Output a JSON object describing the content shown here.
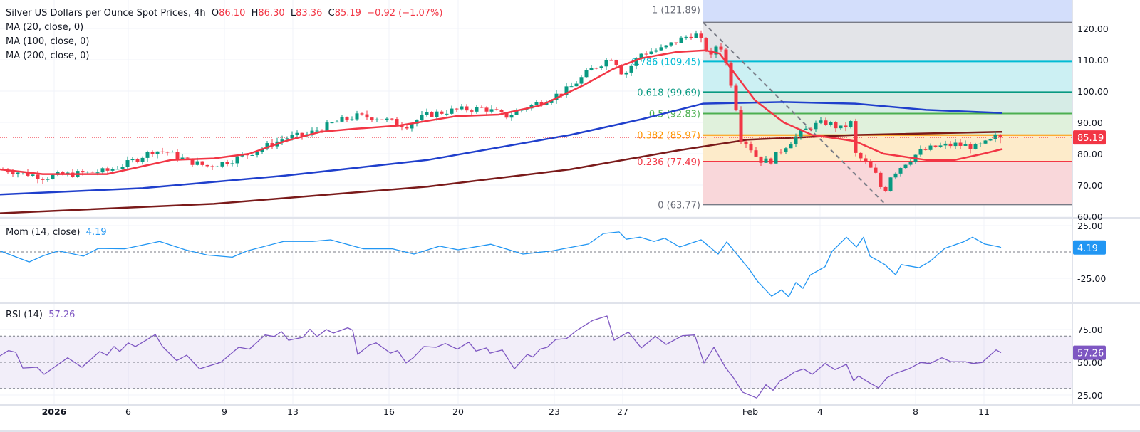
{
  "header": {
    "title": "Silver US Dollars per Ounce Spot Prices, 4h",
    "open_label": "O",
    "open": "86.10",
    "high_label": "H",
    "high": "86.30",
    "low_label": "L",
    "low": "83.36",
    "close_label": "C",
    "close": "85.19",
    "change": "−0.92 (−1.07%)",
    "ma1": "MA (20, close, 0)",
    "ma2": "MA (100, close, 0)",
    "ma3": "MA (200, close, 0)"
  },
  "colors": {
    "up": "#089981",
    "down": "#f23645",
    "ma20": "#f23645",
    "ma100": "#1f3fcc",
    "ma200": "#7a1a1a",
    "mom": "#2196f3",
    "rsi": "#7e57c2"
  },
  "chart_data": [
    {
      "type": "candlestick",
      "title": "Silver US Dollars per Ounce Spot Prices, 4h",
      "ylim": [
        58,
        127
      ],
      "y_ticks": [
        "120.00",
        "110.00",
        "100.00",
        "90.00",
        "80.00",
        "70.00",
        "60.00"
      ],
      "last_price": "85.19",
      "last_bar": {
        "open": 86.1,
        "high": 86.3,
        "low": 83.36,
        "close": 85.19
      },
      "x_ticks": [
        "2026",
        "6",
        "9",
        "13",
        "16",
        "20",
        "23",
        "27",
        "Feb",
        "4",
        "8",
        "11"
      ],
      "close_path": [
        [
          0,
          75
        ],
        [
          30,
          74
        ],
        [
          60,
          72.5
        ],
        [
          100,
          73.5
        ],
        [
          150,
          74.5
        ],
        [
          180,
          77
        ],
        [
          215,
          81
        ],
        [
          235,
          80.5
        ],
        [
          260,
          78
        ],
        [
          290,
          76
        ],
        [
          320,
          77.5
        ],
        [
          360,
          81
        ],
        [
          400,
          85
        ],
        [
          430,
          86
        ],
        [
          470,
          90
        ],
        [
          500,
          92
        ],
        [
          530,
          91.5
        ],
        [
          570,
          89
        ],
        [
          600,
          92.5
        ],
        [
          640,
          94
        ],
        [
          680,
          94.5
        ],
        [
          710,
          92
        ],
        [
          740,
          95
        ],
        [
          770,
          97.5
        ],
        [
          800,
          101
        ],
        [
          830,
          107
        ],
        [
          860,
          111
        ],
        [
          875,
          105
        ],
        [
          900,
          112
        ],
        [
          930,
          113.5
        ],
        [
          950,
          116
        ],
        [
          975,
          118.5
        ],
        [
          990,
          114
        ],
        [
          1000,
          110
        ],
        [
          1008,
          117
        ],
        [
          1020,
          108
        ],
        [
          1030,
          99
        ],
        [
          1040,
          85
        ],
        [
          1050,
          83
        ],
        [
          1065,
          78
        ],
        [
          1080,
          77.5
        ],
        [
          1100,
          82
        ],
        [
          1120,
          86
        ],
        [
          1140,
          89
        ],
        [
          1160,
          90
        ],
        [
          1180,
          88
        ],
        [
          1195,
          90
        ],
        [
          1200,
          80
        ],
        [
          1215,
          77
        ],
        [
          1230,
          73
        ],
        [
          1240,
          67
        ],
        [
          1250,
          73
        ],
        [
          1270,
          77
        ],
        [
          1290,
          80.5
        ],
        [
          1310,
          82
        ],
        [
          1340,
          83
        ],
        [
          1370,
          82
        ],
        [
          1390,
          84
        ],
        [
          1400,
          86
        ],
        [
          1407,
          85.19
        ]
      ],
      "ma20": [
        [
          0,
          75
        ],
        [
          60,
          73.5
        ],
        [
          150,
          73.5
        ],
        [
          200,
          76
        ],
        [
          240,
          78
        ],
        [
          300,
          78.5
        ],
        [
          350,
          80
        ],
        [
          400,
          84
        ],
        [
          450,
          87
        ],
        [
          500,
          88
        ],
        [
          560,
          89
        ],
        [
          640,
          92
        ],
        [
          700,
          92.5
        ],
        [
          760,
          95.5
        ],
        [
          820,
          102
        ],
        [
          860,
          107
        ],
        [
          900,
          110.5
        ],
        [
          950,
          112.5
        ],
        [
          990,
          113
        ],
        [
          1010,
          112
        ],
        [
          1030,
          106
        ],
        [
          1060,
          97
        ],
        [
          1100,
          90
        ],
        [
          1140,
          86
        ],
        [
          1200,
          84
        ],
        [
          1240,
          80
        ],
        [
          1300,
          78
        ],
        [
          1340,
          78
        ],
        [
          1380,
          80
        ],
        [
          1407,
          81.5
        ]
      ],
      "ma100": [
        [
          0,
          67
        ],
        [
          200,
          69
        ],
        [
          400,
          73
        ],
        [
          600,
          78
        ],
        [
          800,
          86
        ],
        [
          900,
          91
        ],
        [
          987,
          96
        ],
        [
          1100,
          96.5
        ],
        [
          1200,
          96
        ],
        [
          1300,
          94
        ],
        [
          1407,
          93
        ]
      ],
      "ma200": [
        [
          0,
          61
        ],
        [
          300,
          64
        ],
        [
          600,
          69.5
        ],
        [
          800,
          75
        ],
        [
          950,
          81
        ],
        [
          1050,
          84.5
        ],
        [
          1200,
          86
        ],
        [
          1407,
          87
        ]
      ],
      "fibonacci": [
        {
          "level": "1",
          "price": 121.89,
          "label": "1 (121.89)",
          "color": "#787b86",
          "fill": "#e3e4e8"
        },
        {
          "level": "0.786",
          "price": 109.45,
          "label": "0.786 (109.45)",
          "color": "#00bcd4",
          "fill": "#ccf0f3"
        },
        {
          "level": "0.618",
          "price": 99.69,
          "label": "0.618 (99.69)",
          "color": "#089981",
          "fill": "#d6ece6"
        },
        {
          "level": "0.5",
          "price": 92.83,
          "label": "0.5 (92.83)",
          "color": "#4caf50",
          "fill": "#e0f1dc"
        },
        {
          "level": "0.382",
          "price": 85.97,
          "label": "0.382 (85.97)",
          "color": "#ff9800",
          "fill": "#fdebca"
        },
        {
          "level": "0.236",
          "price": 77.49,
          "label": "0.236 (77.49)",
          "color": "#f23645",
          "fill": "#f9d7da"
        },
        {
          "level": "0",
          "price": 63.77,
          "label": "0 (63.77)",
          "color": "#787b86",
          "fill": "#f9d7da"
        }
      ]
    },
    {
      "type": "line",
      "title": "Mom (14, close)",
      "last_value": "4.19",
      "y_ticks": [
        "25.00",
        "-25.00"
      ],
      "values": [
        [
          0,
          1
        ],
        [
          41,
          -9.5
        ],
        [
          61,
          -3.5
        ],
        [
          82,
          1
        ],
        [
          117,
          -4
        ],
        [
          138,
          3.3
        ],
        [
          175,
          3
        ],
        [
          224,
          10
        ],
        [
          260,
          2
        ],
        [
          291,
          -3
        ],
        [
          326,
          -5
        ],
        [
          347,
          1
        ],
        [
          398,
          10
        ],
        [
          439,
          10
        ],
        [
          464,
          11.5
        ],
        [
          510,
          3
        ],
        [
          551,
          3
        ],
        [
          581,
          -2
        ],
        [
          617,
          5.5
        ],
        [
          643,
          2
        ],
        [
          689,
          7.3
        ],
        [
          734,
          -2
        ],
        [
          775,
          1
        ],
        [
          826,
          7.5
        ],
        [
          847,
          17.5
        ],
        [
          869,
          19
        ],
        [
          879,
          12
        ],
        [
          898,
          14
        ],
        [
          918,
          10
        ],
        [
          933,
          13
        ],
        [
          954,
          4.7
        ],
        [
          984,
          11.5
        ],
        [
          1008,
          -2
        ],
        [
          1020,
          9.5
        ],
        [
          1051,
          -16
        ],
        [
          1063,
          -27.7
        ],
        [
          1083,
          -42
        ],
        [
          1097,
          -36
        ],
        [
          1107,
          -42.6
        ],
        [
          1117,
          -29
        ],
        [
          1127,
          -34.5
        ],
        [
          1137,
          -22
        ],
        [
          1158,
          -14
        ],
        [
          1168,
          0.7
        ],
        [
          1188,
          14
        ],
        [
          1202,
          4.7
        ],
        [
          1212,
          14
        ],
        [
          1221,
          -4
        ],
        [
          1242,
          -12
        ],
        [
          1257,
          -21.6
        ],
        [
          1265,
          -12
        ],
        [
          1290,
          -15
        ],
        [
          1306,
          -8.6
        ],
        [
          1326,
          3.4
        ],
        [
          1352,
          9.5
        ],
        [
          1365,
          14
        ],
        [
          1382,
          7.5
        ],
        [
          1403,
          4.7
        ],
        [
          1405,
          4.19
        ]
      ]
    },
    {
      "type": "line",
      "title": "RSI (14)",
      "last_value": "57.26",
      "y_ticks": [
        "75.00",
        "50.00",
        "25.00"
      ],
      "bands": [
        70,
        50,
        30
      ],
      "values": [
        [
          0,
          54.9
        ],
        [
          12,
          58.9
        ],
        [
          22,
          57.6
        ],
        [
          32,
          45.6
        ],
        [
          52,
          46.2
        ],
        [
          62,
          40.8
        ],
        [
          95,
          53.4
        ],
        [
          115,
          46.2
        ],
        [
          140,
          58.2
        ],
        [
          150,
          55.4
        ],
        [
          160,
          62
        ],
        [
          168,
          58.2
        ],
        [
          180,
          64.8
        ],
        [
          190,
          62
        ],
        [
          205,
          66.8
        ],
        [
          218,
          71.2
        ],
        [
          228,
          62
        ],
        [
          248,
          51.3
        ],
        [
          262,
          55.4
        ],
        [
          280,
          45
        ],
        [
          310,
          50
        ],
        [
          335,
          61.4
        ],
        [
          350,
          60
        ],
        [
          372,
          70.8
        ],
        [
          385,
          69.7
        ],
        [
          395,
          73.4
        ],
        [
          405,
          66.8
        ],
        [
          425,
          69
        ],
        [
          435,
          75.2
        ],
        [
          445,
          69.5
        ],
        [
          458,
          75
        ],
        [
          468,
          72.3
        ],
        [
          488,
          76.3
        ],
        [
          495,
          74.5
        ],
        [
          502,
          56
        ],
        [
          518,
          63
        ],
        [
          528,
          64.8
        ],
        [
          548,
          57
        ],
        [
          558,
          58.9
        ],
        [
          570,
          49.5
        ],
        [
          580,
          53.4
        ],
        [
          595,
          62
        ],
        [
          612,
          61.4
        ],
        [
          625,
          64.3
        ],
        [
          642,
          60
        ],
        [
          658,
          65.4
        ],
        [
          668,
          58.6
        ],
        [
          683,
          60.9
        ],
        [
          688,
          57
        ],
        [
          705,
          59.4
        ],
        [
          722,
          45
        ],
        [
          740,
          56
        ],
        [
          748,
          54
        ],
        [
          758,
          60
        ],
        [
          768,
          61.4
        ],
        [
          780,
          67.4
        ],
        [
          795,
          68
        ],
        [
          810,
          74.5
        ],
        [
          832,
          82
        ],
        [
          852,
          85.3
        ],
        [
          862,
          66.8
        ],
        [
          882,
          73
        ],
        [
          900,
          60.9
        ],
        [
          920,
          69.7
        ],
        [
          935,
          63.6
        ],
        [
          958,
          70.3
        ],
        [
          975,
          70.8
        ],
        [
          988,
          49.5
        ],
        [
          1002,
          61.4
        ],
        [
          1018,
          46.2
        ],
        [
          1030,
          37.7
        ],
        [
          1042,
          27.3
        ],
        [
          1062,
          22.7
        ],
        [
          1075,
          32.8
        ],
        [
          1085,
          28.6
        ],
        [
          1095,
          35.9
        ],
        [
          1105,
          38.6
        ],
        [
          1115,
          42.6
        ],
        [
          1128,
          44.9
        ],
        [
          1140,
          40.8
        ],
        [
          1158,
          49.1
        ],
        [
          1172,
          44.4
        ],
        [
          1188,
          48.5
        ],
        [
          1198,
          35.9
        ],
        [
          1205,
          39.5
        ],
        [
          1218,
          35
        ],
        [
          1233,
          30.4
        ],
        [
          1245,
          38.2
        ],
        [
          1258,
          41.8
        ],
        [
          1275,
          44.9
        ],
        [
          1292,
          49.8
        ],
        [
          1305,
          49.1
        ],
        [
          1322,
          53.4
        ],
        [
          1335,
          50.4
        ],
        [
          1355,
          50.4
        ],
        [
          1365,
          49.1
        ],
        [
          1378,
          49.8
        ],
        [
          1398,
          59.4
        ],
        [
          1405,
          57.26
        ]
      ]
    }
  ]
}
